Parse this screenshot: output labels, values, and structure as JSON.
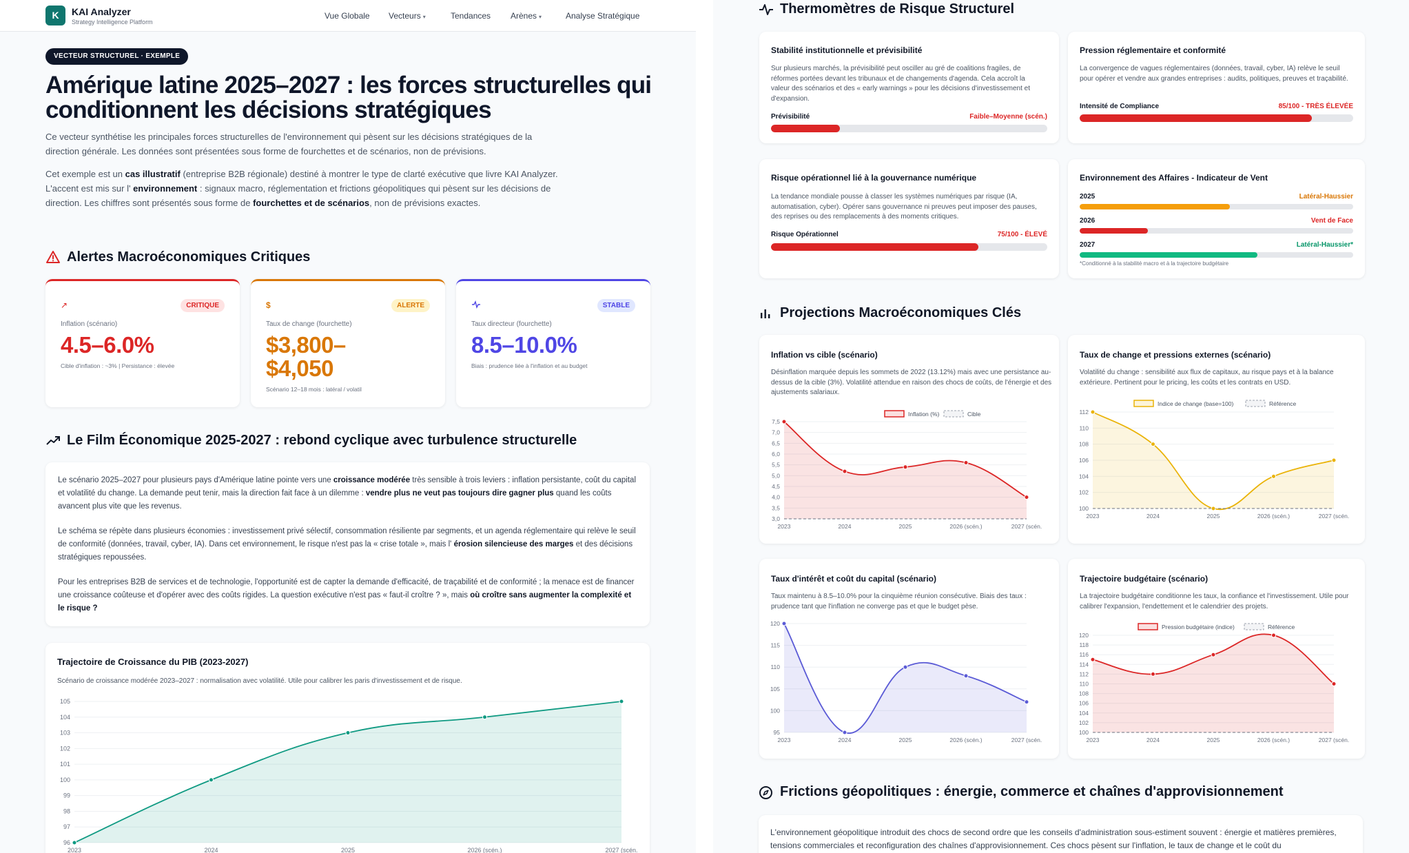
{
  "header": {
    "logo_letter": "K",
    "brand": "KAI Analyzer",
    "brand_sub": "Strategy Intelligence Platform",
    "nav": [
      "Vue Globale",
      "Vecteurs",
      "Tendances",
      "Arènes",
      "Analyse Stratégique"
    ]
  },
  "hero": {
    "pill": "VECTEUR STRUCTUREL · EXEMPLE",
    "title": "Amérique latine 2025–2027 : les forces structurelles qui conditionnent les décisions stratégiques",
    "intro": "Ce vecteur synthétise les principales forces structurelles de l'environnement qui pèsent sur les décisions stratégiques de la direction générale. Les données sont présentées sous forme de fourchettes et de scénarios, non de prévisions.",
    "p2_a": "Cet exemple est un ",
    "p2_b": "cas illustratif",
    "p2_c": " (entreprise B2B régionale) destiné à montrer le type de clarté exécutive que livre KAI Analyzer. L'accent est mis sur l' ",
    "p2_d": "environnement",
    "p2_e": " : signaux macro, réglementation et frictions géopolitiques qui pèsent sur les décisions de direction. Les chiffres sont présentés sous forme de ",
    "p2_f": "fourchettes et de scénarios",
    "p2_g": ", non de prévisions exactes."
  },
  "alerts": {
    "title": "Alertes Macroéconomiques Critiques",
    "cards": [
      {
        "icon": "trend-up-icon",
        "badge": "CRITIQUE",
        "label": "Inflation (scénario)",
        "value": "4.5–6.0%",
        "note": "Cible d'inflation : ~3% | Persistance : élevée",
        "color": "#dc2626",
        "badge_bg": "#fee2e2"
      },
      {
        "icon": "dollar-icon",
        "badge": "ALERTE",
        "label": "Taux de change (fourchette)",
        "value_line1": "$3,800–",
        "value_line2": "$4,050",
        "note": "Scénario 12–18 mois : latéral / volatil",
        "color": "#d97706",
        "badge_bg": "#fef3c7"
      },
      {
        "icon": "pulse-icon",
        "badge": "STABLE",
        "label": "Taux directeur (fourchette)",
        "value": "8.5–10.0%",
        "note": "Biais : prudence liée à l'inflation et au budget",
        "color": "#4f46e5",
        "badge_bg": "#e0e7ff"
      }
    ]
  },
  "film": {
    "title": "Le Film Économique 2025-2027 : rebond cyclique avec turbulence structurelle",
    "p1_a": "Le scénario 2025–2027 pour plusieurs pays d'Amérique latine pointe vers une ",
    "p1_b": "croissance modérée",
    "p1_c": " très sensible à trois leviers : inflation persistante, coût du capital et volatilité du change. La demande peut tenir, mais la direction fait face à un dilemme : ",
    "p1_d": "vendre plus ne veut pas toujours dire gagner plus",
    "p1_e": " quand les coûts avancent plus vite que les revenus.",
    "p2_a": "Le schéma se répète dans plusieurs économies : investissement privé sélectif, consommation résiliente par segments, et un agenda réglementaire qui relève le seuil de conformité (données, travail, cyber, IA). Dans cet environnement, le risque n'est pas la « crise totale », mais l' ",
    "p2_b": "érosion silencieuse des marges",
    "p2_c": " et des décisions stratégiques repoussées.",
    "p3_a": "Pour les entreprises B2B de services et de technologie, l'opportunité est de capter la demande d'efficacité, de traçabilité et de conformité ; la menace est de financer une croissance coûteuse et d'opérer avec des coûts rigides. La question exécutive n'est pas « faut-il croître ? », mais ",
    "p3_b": "où croître sans augmenter la complexité et le risque ?"
  },
  "gdp_chart": {
    "title": "Trajectoire de Croissance du PIB (2023-2027)",
    "desc": "Scénario de croissance modérée 2023–2027 : normalisation avec volatilité. Utile pour calibrer les paris d'investissement et de risque."
  },
  "thermo": {
    "title": "Thermomètres de Risque Structurel",
    "cards": [
      {
        "title": "Stabilité institutionnelle et prévisibilité",
        "desc": "Sur plusieurs marchés, la prévisibilité peut osciller au gré de coalitions fragiles, de réformes portées devant les tribunaux et de changements d'agenda. Cela accroît la valeur des scénarios et des « early warnings » pour les décisions d'investissement et d'expansion.",
        "meter_label": "Prévisibilité",
        "meter_value": "Faible–Moyenne (scén.)",
        "level": 0.25,
        "color": "#dc2626"
      },
      {
        "title": "Pression réglementaire et conformité",
        "desc": "La convergence de vagues réglementaires (données, travail, cyber, IA) relève le seuil pour opérer et vendre aux grandes entreprises : audits, politiques, preuves et traçabilité.",
        "meter_label": "Intensité de Compliance",
        "meter_value": "85/100 - TRÈS ÉLEVÉE",
        "level": 0.85,
        "color": "#dc2626"
      },
      {
        "title": "Risque opérationnel lié à la gouvernance numérique",
        "desc": "La tendance mondiale pousse à classer les systèmes numériques par risque (IA, automatisation, cyber). Opérer sans gouvernance ni preuves peut imposer des pauses, des reprises ou des remplacements à des moments critiques.",
        "meter_label": "Risque Opérationnel",
        "meter_value": "75/100 - ÉLEVÉ",
        "level": 0.75,
        "color": "#dc2626"
      }
    ],
    "wind": {
      "title": "Environnement des Affaires - Indicateur de Vent",
      "rows": [
        {
          "year": "2025",
          "value": "Latéral-Haussier",
          "level": 0.55,
          "color": "#f59e0b",
          "text_color": "#d97706"
        },
        {
          "year": "2026",
          "value": "Vent de Face",
          "level": 0.25,
          "color": "#dc2626",
          "text_color": "#dc2626"
        },
        {
          "year": "2027",
          "value": "Latéral-Haussier*",
          "level": 0.65,
          "color": "#10b981",
          "text_color": "#059669"
        }
      ],
      "note": "*Conditionné à la stabilité macro et à la trajectoire budgétaire"
    }
  },
  "projections": {
    "title": "Projections Macroéconomiques Clés",
    "cards": [
      {
        "title": "Inflation vs cible (scénario)",
        "desc": "Désinflation marquée depuis les sommets de 2022 (13.12%) mais avec une persistance au-dessus de la cible (3%). Volatilité attendue en raison des chocs de coûts, de l'énergie et des ajustements salariaux.",
        "legend_a": "Inflation (%)",
        "legend_b": "Cible"
      },
      {
        "title": "Taux de change et pressions externes (scénario)",
        "desc": "Volatilité du change : sensibilité aux flux de capitaux, au risque pays et à la balance extérieure. Pertinent pour le pricing, les coûts et les contrats en USD.",
        "legend_a": "Indice de change (base=100)",
        "legend_b": "Référence"
      },
      {
        "title": "Taux d'intérêt et coût du capital (scénario)",
        "desc": "Taux maintenu à 8.5–10.0% pour la cinquième réunion consécutive. Biais des taux : prudence tant que l'inflation ne converge pas et que le budget pèse."
      },
      {
        "title": "Trajectoire budgétaire (scénario)",
        "desc": "La trajectoire budgétaire conditionne les taux, la confiance et l'investissement. Utile pour calibrer l'expansion, l'endettement et le calendrier des projets.",
        "legend_a": "Pression budgétaire (indice)",
        "legend_b": "Référence"
      }
    ]
  },
  "geo": {
    "title": "Frictions géopolitiques : énergie, commerce et chaînes d'approvisionnement",
    "text": "L'environnement géopolitique introduit des chocs de second ordre que les conseils d'administration sous-estiment souvent : énergie et matières premières, tensions commerciales et reconfiguration des chaînes d'approvisionnement. Ces chocs pèsent sur l'inflation, le taux de change et le coût du"
  },
  "chart_data": [
    {
      "type": "area",
      "title": "Trajectoire de Croissance du PIB (2023-2027)",
      "categories": [
        "2023",
        "2024",
        "2025",
        "2026 (scén.)",
        "2027 (scén."
      ],
      "values": [
        96,
        100,
        103,
        104,
        105
      ],
      "ylim": [
        96,
        105
      ],
      "color": "#0f9a82"
    },
    {
      "type": "line",
      "title": "Inflation vs cible (scénario)",
      "categories": [
        "2023",
        "2024",
        "2025",
        "2026 (scén.)",
        "2027 (scén."
      ],
      "series": [
        {
          "name": "Inflation (%)",
          "values": [
            7.5,
            5.2,
            5.4,
            5.6,
            4.0
          ]
        },
        {
          "name": "Cible",
          "values": [
            3.0,
            3.0,
            3.0,
            3.0,
            3.0
          ]
        }
      ],
      "ylim": [
        3.0,
        7.5
      ],
      "yticks": [
        "7,5",
        "7,0",
        "6,5",
        "6,0",
        "5,5",
        "5,0",
        "4,5",
        "4,0",
        "3,5",
        "3,0"
      ],
      "color": "#dc2626"
    },
    {
      "type": "line",
      "title": "Taux de change et pressions externes (scénario)",
      "categories": [
        "2023",
        "2024",
        "2025",
        "2026 (scén.)",
        "2027 (scén."
      ],
      "series": [
        {
          "name": "Indice de change (base=100)",
          "values": [
            112,
            108,
            100,
            104,
            106
          ]
        },
        {
          "name": "Référence",
          "values": [
            100,
            100,
            100,
            100,
            100
          ]
        }
      ],
      "ylim": [
        100,
        112
      ],
      "yticks": [
        "112",
        "110",
        "108",
        "106",
        "104",
        "102",
        "100"
      ],
      "color": "#eab308"
    },
    {
      "type": "line",
      "title": "Taux d'intérêt et coût du capital (scénario)",
      "categories": [
        "2023",
        "2024",
        "2025",
        "2026 (scén.)",
        "2027 (scén."
      ],
      "series": [
        {
          "name": "",
          "values": [
            120,
            95,
            110,
            108,
            102
          ]
        }
      ],
      "ylim": [
        95,
        120
      ],
      "yticks": [
        "120",
        "115",
        "110",
        "105",
        "100",
        "95"
      ],
      "color": "#5b5bd6"
    },
    {
      "type": "line",
      "title": "Trajectoire budgétaire (scénario)",
      "categories": [
        "2023",
        "2024",
        "2025",
        "2026 (scén.)",
        "2027 (scén."
      ],
      "series": [
        {
          "name": "Pression budgétaire (indice)",
          "values": [
            115,
            112,
            116,
            120,
            110
          ]
        },
        {
          "name": "Référence",
          "values": [
            100,
            100,
            100,
            100,
            100
          ]
        }
      ],
      "ylim": [
        100,
        120
      ],
      "yticks": [
        "120",
        "118",
        "116",
        "114",
        "112",
        "110",
        "108",
        "106",
        "104",
        "102",
        "100"
      ],
      "color": "#dc2626"
    }
  ]
}
